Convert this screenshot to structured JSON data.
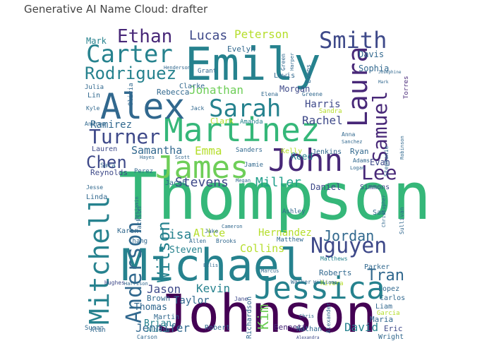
{
  "chart_data": {
    "type": "wordcloud",
    "title": "Generative AI Name Cloud: drafter",
    "colormap": "viridis",
    "background": "#ffffff",
    "words": [
      {
        "text": "Thompson",
        "weight": 1.0
      },
      {
        "text": "Johnson",
        "weight": 0.82
      },
      {
        "text": "Michael",
        "weight": 0.76
      },
      {
        "text": "Emily",
        "weight": 0.72
      },
      {
        "text": "Martinez",
        "weight": 0.52
      },
      {
        "text": "Alex",
        "weight": 0.55
      },
      {
        "text": "Jessica",
        "weight": 0.52
      },
      {
        "text": "John",
        "weight": 0.5
      },
      {
        "text": "James",
        "weight": 0.5
      },
      {
        "text": "Mitchell",
        "weight": 0.48
      },
      {
        "text": "Laura",
        "weight": 0.44
      },
      {
        "text": "Carter",
        "weight": 0.4
      },
      {
        "text": "Sarah",
        "weight": 0.4
      },
      {
        "text": "Smith",
        "weight": 0.38
      },
      {
        "text": "Samuel",
        "weight": 0.36
      },
      {
        "text": "Anderson",
        "weight": 0.36
      },
      {
        "text": "Nguyen",
        "weight": 0.34
      },
      {
        "text": "Turner",
        "weight": 0.32
      },
      {
        "text": "Lee",
        "weight": 0.32
      },
      {
        "text": "Rodriguez",
        "weight": 0.3
      },
      {
        "text": "Ethan",
        "weight": 0.3
      },
      {
        "text": "Chen",
        "weight": 0.28
      },
      {
        "text": "Tran",
        "weight": 0.28
      },
      {
        "text": "Wilson",
        "weight": 0.26
      },
      {
        "text": "Kim",
        "weight": 0.24
      },
      {
        "text": "Jordan",
        "weight": 0.24
      },
      {
        "text": "Lucas",
        "weight": 0.22
      },
      {
        "text": "Peterson",
        "weight": 0.2
      },
      {
        "text": "Jonathan",
        "weight": 0.2
      },
      {
        "text": "Stevens",
        "weight": 0.2
      },
      {
        "text": "Miller",
        "weight": 0.2
      },
      {
        "text": "Lisa",
        "weight": 0.22
      },
      {
        "text": "Jennifer",
        "weight": 0.2
      },
      {
        "text": "David",
        "weight": 0.2
      },
      {
        "text": "Kevin",
        "weight": 0.2
      },
      {
        "text": "Jason",
        "weight": 0.2
      },
      {
        "text": "Harris",
        "weight": 0.18
      },
      {
        "text": "Rachel",
        "weight": 0.18
      },
      {
        "text": "Samantha",
        "weight": 0.18
      },
      {
        "text": "Ramirez",
        "weight": 0.17
      },
      {
        "text": "Emma",
        "weight": 0.18
      },
      {
        "text": "Alice",
        "weight": 0.17
      },
      {
        "text": "Hernandez",
        "weight": 0.16
      },
      {
        "text": "Collins",
        "weight": 0.17
      },
      {
        "text": "Steven",
        "weight": 0.15
      },
      {
        "text": "Taylor",
        "weight": 0.16
      },
      {
        "text": "Thomas",
        "weight": 0.15
      },
      {
        "text": "Daniel",
        "weight": 0.14
      },
      {
        "text": "Evan",
        "weight": 0.14
      },
      {
        "text": "Mark",
        "weight": 0.14
      },
      {
        "text": "Davis",
        "weight": 0.13
      },
      {
        "text": "Sophia",
        "weight": 0.13
      },
      {
        "text": "Morgan",
        "weight": 0.13
      },
      {
        "text": "Lewis",
        "weight": 0.12
      },
      {
        "text": "Evelyn",
        "weight": 0.13
      },
      {
        "text": "Rebecca",
        "weight": 0.12
      },
      {
        "text": "Reynolds",
        "weight": 0.12
      },
      {
        "text": "Lauren",
        "weight": 0.12
      },
      {
        "text": "Reed",
        "weight": 0.13
      },
      {
        "text": "Ryan",
        "weight": 0.12
      },
      {
        "text": "Jenkins",
        "weight": 0.11
      },
      {
        "text": "Kelly",
        "weight": 0.11
      },
      {
        "text": "Sandra",
        "weight": 0.11
      },
      {
        "text": "Amanda",
        "weight": 0.11
      },
      {
        "text": "Clark",
        "weight": 0.11
      },
      {
        "text": "Andrew",
        "weight": 0.1
      },
      {
        "text": "Sanders",
        "weight": 0.1
      },
      {
        "text": "Jacob",
        "weight": 0.1
      },
      {
        "text": "Simmons",
        "weight": 0.1
      },
      {
        "text": "Linda",
        "weight": 0.1
      },
      {
        "text": "Karen",
        "weight": 0.1
      },
      {
        "text": "Chang",
        "weight": 0.1
      },
      {
        "text": "Roberts",
        "weight": 0.11
      },
      {
        "text": "Parker",
        "weight": 0.1
      },
      {
        "text": "Brown",
        "weight": 0.1
      },
      {
        "text": "Brian",
        "weight": 0.11
      },
      {
        "text": "Martin",
        "weight": 0.1
      },
      {
        "text": "Lopez",
        "weight": 0.1
      },
      {
        "text": "Carlos",
        "weight": 0.1
      },
      {
        "text": "Liam",
        "weight": 0.1
      },
      {
        "text": "Maria",
        "weight": 0.1
      },
      {
        "text": "Eric",
        "weight": 0.1
      },
      {
        "text": "Wright",
        "weight": 0.1
      },
      {
        "text": "Bennett",
        "weight": 0.1
      },
      {
        "text": "Nathan",
        "weight": 0.1
      },
      {
        "text": "Robert",
        "weight": 0.1
      },
      {
        "text": "Susan",
        "weight": 0.09
      },
      {
        "text": "Alicia",
        "weight": 0.09
      },
      {
        "text": "Garcia",
        "weight": 0.09
      },
      {
        "text": "Rivera",
        "weight": 0.09
      },
      {
        "text": "Matthews",
        "weight": 0.08
      },
      {
        "text": "Matthew",
        "weight": 0.08
      },
      {
        "text": "Allen",
        "weight": 0.08
      },
      {
        "text": "Brooks",
        "weight": 0.08
      },
      {
        "text": "Jane",
        "weight": 0.08
      },
      {
        "text": "Walker",
        "weight": 0.08
      },
      {
        "text": "Williams",
        "weight": 0.08
      },
      {
        "text": "Hughes",
        "weight": 0.08
      },
      {
        "text": "Harrison",
        "weight": 0.07
      },
      {
        "text": "Jackson",
        "weight": 0.08
      },
      {
        "text": "Benjamin",
        "weight": 0.07
      },
      {
        "text": "Richardson",
        "weight": 0.08
      },
      {
        "text": "Sullivan",
        "weight": 0.08
      },
      {
        "text": "Alexander",
        "weight": 0.07
      },
      {
        "text": "Stephanie",
        "weight": 0.08
      },
      {
        "text": "Robinson",
        "weight": 0.07
      },
      {
        "text": "Torres",
        "weight": 0.08
      },
      {
        "text": "Olivia",
        "weight": 0.07
      },
      {
        "text": "Green",
        "weight": 0.07
      },
      {
        "text": "Harper",
        "weight": 0.07
      },
      {
        "text": "Evans",
        "weight": 0.08
      },
      {
        "text": "Grant",
        "weight": 0.07
      },
      {
        "text": "Clarke",
        "weight": 0.08
      },
      {
        "text": "Julia",
        "weight": 0.07
      },
      {
        "text": "Lin",
        "weight": 0.08
      },
      {
        "text": "Jack",
        "weight": 0.07
      },
      {
        "text": "Elena",
        "weight": 0.07
      },
      {
        "text": "Greene",
        "weight": 0.07
      },
      {
        "text": "Anna",
        "weight": 0.07
      },
      {
        "text": "Sanchez",
        "weight": 0.06
      },
      {
        "text": "Adams",
        "weight": 0.07
      },
      {
        "text": "Hayes",
        "weight": 0.06
      },
      {
        "text": "Scott",
        "weight": 0.06
      },
      {
        "text": "Sara",
        "weight": 0.07
      },
      {
        "text": "Perez",
        "weight": 0.07
      },
      {
        "text": "Megan",
        "weight": 0.06
      },
      {
        "text": "Jamie",
        "weight": 0.07
      },
      {
        "text": "Logan",
        "weight": 0.06
      },
      {
        "text": "Ashley",
        "weight": 0.07
      },
      {
        "text": "Sam",
        "weight": 0.07
      },
      {
        "text": "Jake",
        "weight": 0.06
      },
      {
        "text": "Cameron",
        "weight": 0.06
      },
      {
        "text": "Christopher",
        "weight": 0.06
      },
      {
        "text": "Marcus",
        "weight": 0.06
      },
      {
        "text": "Ellis",
        "weight": 0.06
      },
      {
        "text": "Chris",
        "weight": 0.06
      },
      {
        "text": "Carson",
        "weight": 0.06
      },
      {
        "text": "Alan",
        "weight": 0.07
      },
      {
        "text": "Kyle",
        "weight": 0.06
      },
      {
        "text": "Henderson",
        "weight": 0.06
      },
      {
        "text": "Mark",
        "weight": 0.05
      },
      {
        "text": "Josephine",
        "weight": 0.05
      },
      {
        "text": "Alexandra",
        "weight": 0.05
      },
      {
        "text": "Jesse",
        "weight": 0.06
      }
    ]
  }
}
